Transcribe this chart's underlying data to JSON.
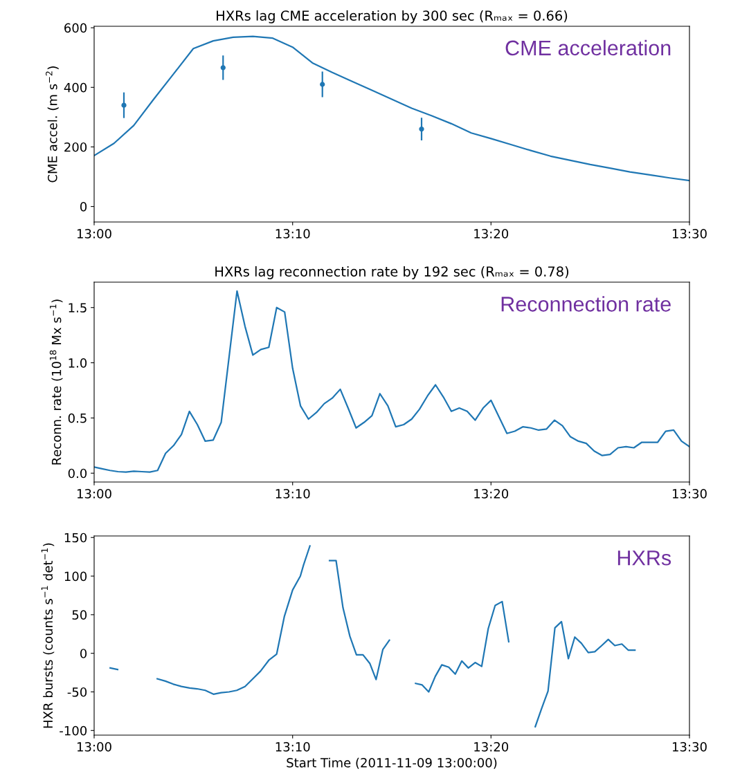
{
  "chart_data": [
    {
      "type": "line",
      "title": "HXRs lag CME acceleration by 300 sec (Rₘₐₓ = 0.66)",
      "ylabel": "CME accel. (m s$^{−2}$)",
      "annotations": [
        "CME acceleration"
      ],
      "xlim": [
        13,
        13.5
      ],
      "xticks": [
        {
          "value": 13,
          "label": "13:00"
        },
        {
          "value": 13.1667,
          "label": "13:10"
        },
        {
          "value": 13.3333,
          "label": "13:20"
        },
        {
          "value": 13.5,
          "label": "13:30"
        }
      ],
      "ylim": [
        -52,
        605
      ],
      "yticks": [
        0,
        200,
        400,
        600
      ],
      "grid": false,
      "legend": false,
      "series": [
        {
          "color": "#1f77b4",
          "x": [
            13.0,
            13.0167,
            13.0333,
            13.05,
            13.0667,
            13.0833,
            13.1,
            13.1167,
            13.1333,
            13.15,
            13.1667,
            13.1833,
            13.2,
            13.2167,
            13.2333,
            13.25,
            13.2667,
            13.2833,
            13.3,
            13.3167,
            13.3333,
            13.35,
            13.3667,
            13.3833,
            13.4,
            13.4167,
            13.4333,
            13.45,
            13.4667,
            13.4833,
            13.5
          ],
          "values": [
            171,
            212,
            272,
            360,
            445,
            530,
            556,
            568,
            571,
            565,
            535,
            482,
            450,
            420,
            390,
            360,
            330,
            305,
            278,
            247,
            228,
            208,
            188,
            169,
            155,
            141,
            129,
            116,
            106,
            96,
            87
          ]
        },
        {
          "type": "scatter",
          "color": "#1f77b4",
          "marker": "circle",
          "x": [
            13.025,
            13.1083,
            13.1917,
            13.275
          ],
          "values": [
            340,
            466,
            410,
            260
          ],
          "errors": [
            43,
            41,
            43,
            38
          ]
        }
      ]
    },
    {
      "type": "line",
      "title": "HXRs lag reconnection rate by 192 sec (Rₘₐₓ = 0.78)",
      "ylabel": "Reconn. rate (10$^{18}$ Mx s$^{−1}$)",
      "annotations": [
        "Reconnection rate"
      ],
      "xlim": [
        13,
        13.5
      ],
      "xticks": [
        {
          "value": 13,
          "label": "13:00"
        },
        {
          "value": 13.1667,
          "label": "13:10"
        },
        {
          "value": 13.3333,
          "label": "13:20"
        },
        {
          "value": 13.5,
          "label": "13:30"
        }
      ],
      "ylim": [
        -0.08,
        1.73
      ],
      "yticks": [
        {
          "value": 0,
          "label": "0.0"
        },
        0.5,
        {
          "value": 1,
          "label": "1.0"
        },
        1.5
      ],
      "grid": false,
      "legend": false,
      "series": [
        {
          "color": "#1f77b4",
          "x": [
            13.0,
            13.0067,
            13.0133,
            13.02,
            13.0267,
            13.0333,
            13.04,
            13.0467,
            13.0533,
            13.06,
            13.0667,
            13.0733,
            13.08,
            13.0867,
            13.0933,
            13.1,
            13.1067,
            13.1133,
            13.12,
            13.1267,
            13.1333,
            13.14,
            13.1467,
            13.1533,
            13.16,
            13.1667,
            13.1733,
            13.18,
            13.1867,
            13.1933,
            13.2,
            13.2067,
            13.2133,
            13.22,
            13.2267,
            13.2333,
            13.24,
            13.2467,
            13.2533,
            13.26,
            13.2667,
            13.2733,
            13.28,
            13.2867,
            13.2933,
            13.3,
            13.3067,
            13.3133,
            13.32,
            13.3267,
            13.3333,
            13.34,
            13.3467,
            13.3533,
            13.36,
            13.3667,
            13.3733,
            13.38,
            13.3867,
            13.3933,
            13.4,
            13.4067,
            13.4133,
            13.42,
            13.4267,
            13.4333,
            13.44,
            13.4467,
            13.4533,
            13.46,
            13.4667,
            13.4733,
            13.48,
            13.4867,
            13.4933,
            13.5
          ],
          "values": [
            0.056,
            0.04,
            0.025,
            0.014,
            0.01,
            0.018,
            0.014,
            0.01,
            0.025,
            0.18,
            0.25,
            0.35,
            0.56,
            0.44,
            0.29,
            0.3,
            0.46,
            1.05,
            1.65,
            1.33,
            1.07,
            1.12,
            1.14,
            1.5,
            1.46,
            0.95,
            0.61,
            0.49,
            0.55,
            0.63,
            0.68,
            0.76,
            0.59,
            0.41,
            0.46,
            0.52,
            0.72,
            0.61,
            0.42,
            0.44,
            0.49,
            0.58,
            0.7,
            0.8,
            0.69,
            0.56,
            0.59,
            0.56,
            0.48,
            0.59,
            0.66,
            0.51,
            0.36,
            0.38,
            0.42,
            0.41,
            0.39,
            0.4,
            0.48,
            0.43,
            0.33,
            0.29,
            0.27,
            0.2,
            0.16,
            0.17,
            0.23,
            0.24,
            0.23,
            0.28,
            0.28,
            0.28,
            0.38,
            0.39,
            0.29,
            0.24
          ]
        }
      ]
    },
    {
      "type": "line",
      "xlabel": "Start Time (2011-11-09 13:00:00)",
      "ylabel": "HXR bursts (counts s$^{−1}$ det$^{−1}$)",
      "annotations": [
        "HXRs"
      ],
      "xlim": [
        13,
        13.5
      ],
      "xticks": [
        {
          "value": 13,
          "label": "13:00"
        },
        {
          "value": 13.1667,
          "label": "13:10"
        },
        {
          "value": 13.3333,
          "label": "13:20"
        },
        {
          "value": 13.5,
          "label": "13:30"
        }
      ],
      "ylim": [
        -106,
        152
      ],
      "yticks": [
        -100,
        -50,
        0,
        50,
        100,
        150
      ],
      "grid": false,
      "legend": false,
      "series": [
        {
          "color": "#1f77b4",
          "x": [
            13.0135,
            13.0197,
            13.0367,
            13.053,
            13.0598,
            13.0665,
            13.0733,
            13.0802,
            13.0865,
            13.0933,
            13.1002,
            13.1067,
            13.1133,
            13.1198,
            13.1267,
            13.1333,
            13.1398,
            13.1467,
            13.1533,
            13.1598,
            13.1667,
            13.1732,
            13.1758,
            13.1812,
            13.19,
            13.1977,
            13.2032,
            13.209,
            13.2148,
            13.2203,
            13.2258,
            13.2315,
            13.2368,
            13.2425,
            13.248,
            13.2583,
            13.27,
            13.2755,
            13.281,
            13.2865,
            13.292,
            13.2978,
            13.3033,
            13.3088,
            13.3143,
            13.32,
            13.3255,
            13.331,
            13.3368,
            13.3427,
            13.3482,
            13.3583,
            13.3705,
            13.3757,
            13.3812,
            13.387,
            13.3925,
            13.3983,
            13.4037,
            13.4092,
            13.415,
            13.4205,
            13.4263,
            13.4318,
            13.4373,
            13.4432,
            13.4487,
            13.4542
          ],
          "values": [
            -19,
            -21,
            null,
            -33,
            -36,
            -40,
            -43,
            -45,
            -46,
            -48,
            -53,
            -51,
            -50,
            -48,
            -43,
            -33,
            -23,
            -9,
            -1,
            48,
            82,
            100,
            114,
            139,
            null,
            120,
            120,
            59,
            22,
            -2,
            -2,
            -13,
            -34,
            5,
            17,
            null,
            -39,
            -41,
            -50,
            -30,
            -15,
            -18,
            -27,
            -10,
            -19,
            -12,
            -17,
            32,
            62,
            67,
            15,
            null,
            -95,
            -72,
            -49,
            33,
            41,
            -7,
            21,
            13,
            1,
            2,
            10,
            18,
            10,
            12,
            4,
            4
          ]
        }
      ]
    }
  ]
}
